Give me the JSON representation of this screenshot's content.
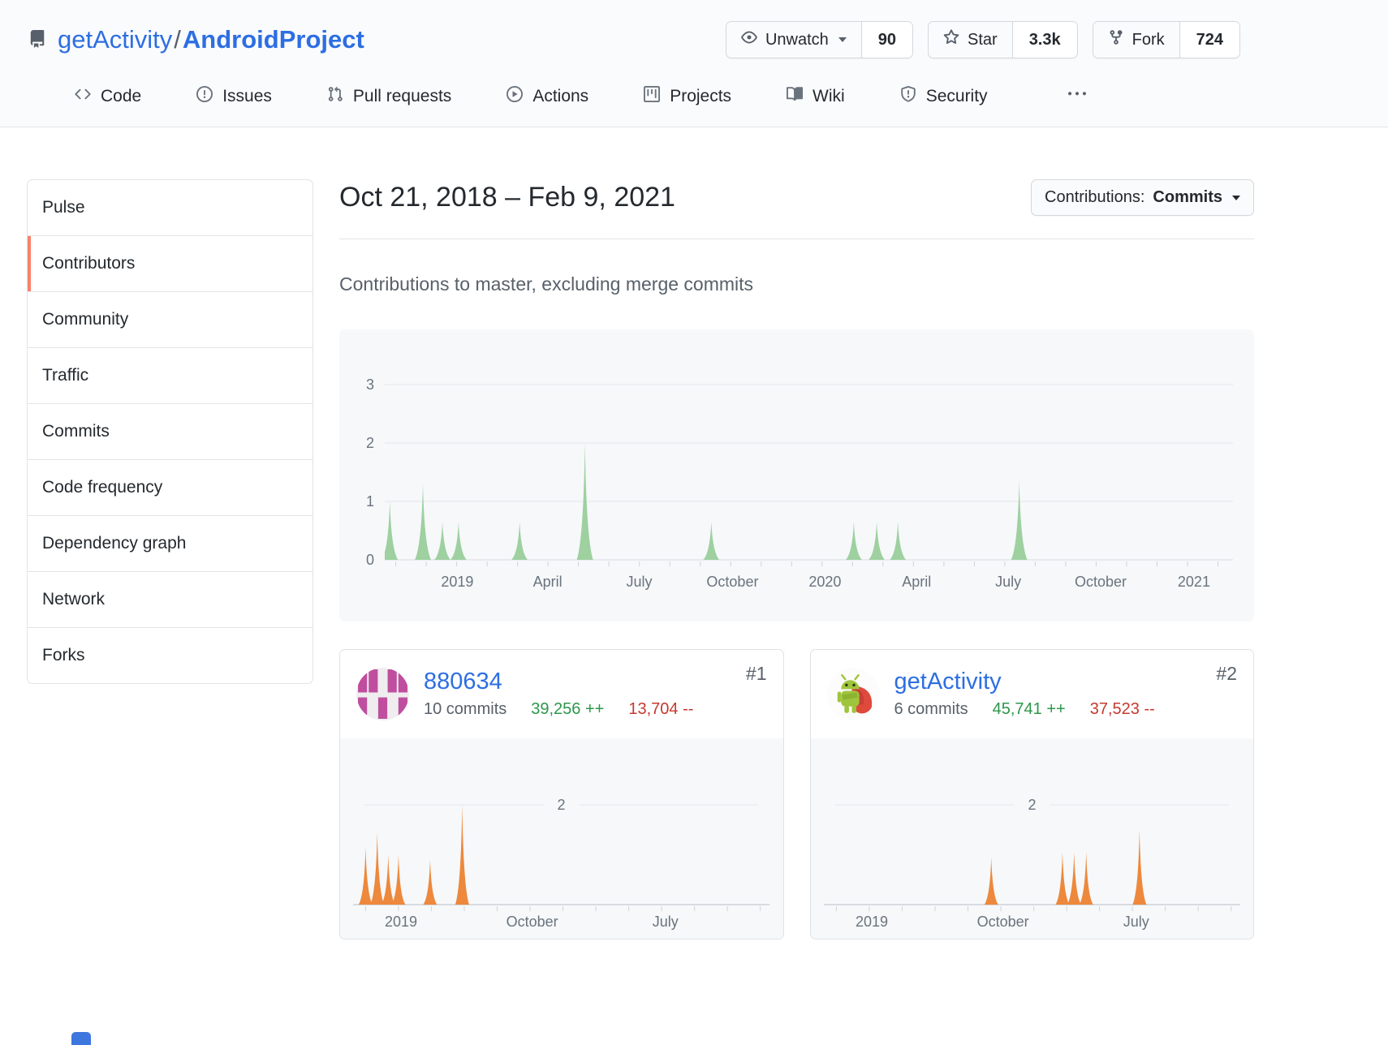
{
  "repo": {
    "owner": "getActivity",
    "separator": "/",
    "name": "AndroidProject"
  },
  "actions": {
    "watch": {
      "label": "Unwatch",
      "count": "90"
    },
    "star": {
      "label": "Star",
      "count": "3.3k"
    },
    "fork": {
      "label": "Fork",
      "count": "724"
    }
  },
  "nav": {
    "tabs": [
      {
        "label": "Code"
      },
      {
        "label": "Issues"
      },
      {
        "label": "Pull requests"
      },
      {
        "label": "Actions"
      },
      {
        "label": "Projects"
      },
      {
        "label": "Wiki"
      },
      {
        "label": "Security"
      }
    ]
  },
  "sidebar": {
    "items": [
      {
        "label": "Pulse"
      },
      {
        "label": "Contributors",
        "selected": true
      },
      {
        "label": "Community"
      },
      {
        "label": "Traffic"
      },
      {
        "label": "Commits"
      },
      {
        "label": "Code frequency"
      },
      {
        "label": "Dependency graph"
      },
      {
        "label": "Network"
      },
      {
        "label": "Forks"
      }
    ]
  },
  "main": {
    "date_range": "Oct 21, 2018 – Feb 9, 2021",
    "dropdown": {
      "prefix": "Contributions:",
      "value": "Commits"
    },
    "subtitle": "Contributions to master, excluding merge commits"
  },
  "contributors": [
    {
      "rank": "#1",
      "name": "880634",
      "commits": "10 commits",
      "additions": "39,256 ++",
      "deletions": "13,704 --"
    },
    {
      "rank": "#2",
      "name": "getActivity",
      "commits": "6 commits",
      "additions": "45,741 ++",
      "deletions": "37,523 --"
    }
  ],
  "colors": {
    "selected_accent": "#f9826c",
    "link": "#2d6ee2",
    "additions_green": "#2c974b",
    "deletions_red": "#c4392f",
    "area_green": "#9ed0a0",
    "area_orange": "#ed883c"
  },
  "chart_data": [
    {
      "type": "area",
      "id": "all-contributions-weekly-commits",
      "title": "Contributions to master, excluding merge commits",
      "series_color": "#9ed0a0",
      "ylim": [
        0,
        3
      ],
      "y_ticks": [
        0,
        1,
        2,
        3
      ],
      "x_range": "Oct 21, 2018 – Feb 9, 2021",
      "x_labels": [
        {
          "label": "2019",
          "f": 0.0855
        },
        {
          "label": "April",
          "f": 0.192
        },
        {
          "label": "July",
          "f": 0.3
        },
        {
          "label": "October",
          "f": 0.41
        },
        {
          "label": "2020",
          "f": 0.519
        },
        {
          "label": "April",
          "f": 0.627
        },
        {
          "label": "July",
          "f": 0.735
        },
        {
          "label": "October",
          "f": 0.844
        },
        {
          "label": "2021",
          "f": 0.954
        }
      ],
      "peaks": [
        {
          "f": 0.006,
          "v": 1.0
        },
        {
          "f": 0.045,
          "v": 1.3
        },
        {
          "f": 0.068,
          "v": 0.65
        },
        {
          "f": 0.087,
          "v": 0.65
        },
        {
          "f": 0.159,
          "v": 0.65
        },
        {
          "f": 0.236,
          "v": 2.0
        },
        {
          "f": 0.385,
          "v": 0.65
        },
        {
          "f": 0.553,
          "v": 0.65
        },
        {
          "f": 0.58,
          "v": 0.65
        },
        {
          "f": 0.605,
          "v": 0.65
        },
        {
          "f": 0.748,
          "v": 1.35
        }
      ]
    },
    {
      "type": "area",
      "id": "contributor-1-weekly-commits",
      "series_color": "#ed883c",
      "ylim": [
        0,
        2.6
      ],
      "gridline_value": 2,
      "x_labels": [
        {
          "label": "2019",
          "f": 0.115
        },
        {
          "label": "October",
          "f": 0.43
        },
        {
          "label": "July",
          "f": 0.75
        }
      ],
      "peaks": [
        {
          "f": 0.03,
          "v": 1.15
        },
        {
          "f": 0.058,
          "v": 1.45
        },
        {
          "f": 0.0845,
          "v": 1.0
        },
        {
          "f": 0.109,
          "v": 1.0
        },
        {
          "f": 0.185,
          "v": 0.9
        },
        {
          "f": 0.262,
          "v": 2.0
        }
      ]
    },
    {
      "type": "area",
      "id": "contributor-2-weekly-commits",
      "series_color": "#ed883c",
      "ylim": [
        0,
        2.6
      ],
      "gridline_value": 2,
      "x_labels": [
        {
          "label": "2019",
          "f": 0.115
        },
        {
          "label": "October",
          "f": 0.43
        },
        {
          "label": "July",
          "f": 0.75
        }
      ],
      "peaks": [
        {
          "f": 0.402,
          "v": 0.95
        },
        {
          "f": 0.573,
          "v": 1.05
        },
        {
          "f": 0.601,
          "v": 1.05
        },
        {
          "f": 0.63,
          "v": 1.05
        },
        {
          "f": 0.758,
          "v": 1.5
        }
      ]
    }
  ]
}
